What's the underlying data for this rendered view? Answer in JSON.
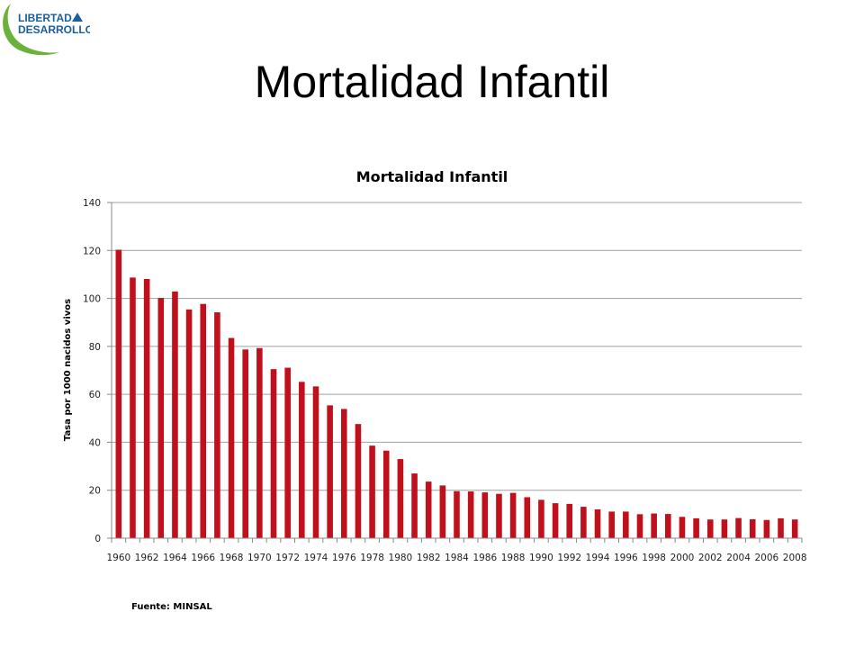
{
  "slide": {
    "title": "Mortalidad Infantil",
    "source": "Fuente: MINSAL"
  },
  "logo": {
    "line1": "LIBERTAD",
    "line2": "DESARROLLO",
    "text_color": "#1a5fa0",
    "swoosh_color": "#6ab23c"
  },
  "chart_data": {
    "type": "bar",
    "title": "Mortalidad Infantil",
    "xlabel": "",
    "ylabel": "Tasa por 1000 nacidos vivos",
    "ylim": [
      0,
      140
    ],
    "yticks": [
      0,
      20,
      40,
      60,
      80,
      100,
      120,
      140
    ],
    "grid": true,
    "bar_color": "#c0101c",
    "categories": [
      "1960",
      "1961",
      "1962",
      "1963",
      "1964",
      "1965",
      "1966",
      "1967",
      "1968",
      "1969",
      "1970",
      "1971",
      "1972",
      "1973",
      "1974",
      "1975",
      "1976",
      "1977",
      "1978",
      "1979",
      "1980",
      "1981",
      "1982",
      "1983",
      "1984",
      "1985",
      "1986",
      "1987",
      "1988",
      "1989",
      "1990",
      "1991",
      "1992",
      "1993",
      "1994",
      "1995",
      "1996",
      "1997",
      "1998",
      "1999",
      "2000",
      "2001",
      "2002",
      "2003",
      "2004",
      "2005",
      "2006",
      "2007",
      "2008"
    ],
    "tick_labels": [
      "1960",
      "1962",
      "1964",
      "1966",
      "1968",
      "1970",
      "1972",
      "1974",
      "1976",
      "1978",
      "1980",
      "1982",
      "1984",
      "1986",
      "1988",
      "1990",
      "1992",
      "1994",
      "1996",
      "1998",
      "2000",
      "2002",
      "2004",
      "2006",
      "2008"
    ],
    "values": [
      120.3,
      108.7,
      108.1,
      100.2,
      102.9,
      95.4,
      97.7,
      94.2,
      83.5,
      78.7,
      79.3,
      70.5,
      71.1,
      65.2,
      63.3,
      55.4,
      53.9,
      47.6,
      38.6,
      36.5,
      33.0,
      27.0,
      23.6,
      22.0,
      19.6,
      19.5,
      19.1,
      18.5,
      18.9,
      17.1,
      16.0,
      14.6,
      14.3,
      13.1,
      12.0,
      11.1,
      11.1,
      10.0,
      10.3,
      10.1,
      8.9,
      8.3,
      7.8,
      7.8,
      8.4,
      7.9,
      7.6,
      8.3,
      7.8
    ]
  }
}
